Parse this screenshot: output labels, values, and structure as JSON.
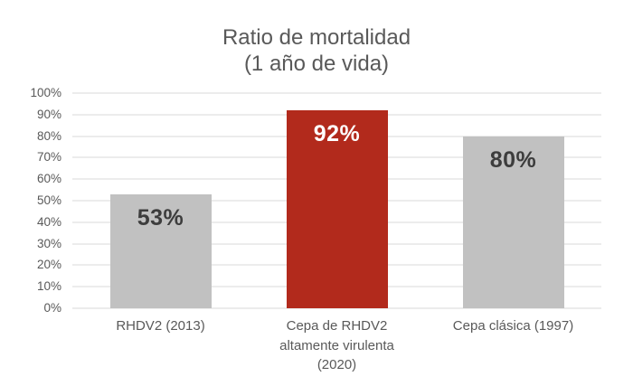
{
  "chart_data": {
    "type": "bar",
    "title": "Ratio de mortalidad",
    "subtitle": "(1 año de vida)",
    "categories": [
      "RHDV2 (2013)",
      "Cepa de RHDV2\naltamente virulenta\n(2020)",
      "Cepa clásica (1997)"
    ],
    "values": [
      53,
      92,
      80
    ],
    "value_labels": [
      "53%",
      "92%",
      "80%"
    ],
    "bar_colors": [
      "#c1c1c1",
      "#b22a1c",
      "#c1c1c1"
    ],
    "value_label_colors": [
      "#3d3d3d",
      "#ffffff",
      "#3d3d3d"
    ],
    "ylim": [
      0,
      100
    ],
    "yticks": [
      0,
      10,
      20,
      30,
      40,
      50,
      60,
      70,
      80,
      90,
      100
    ],
    "ytick_labels": [
      "0%",
      "10%",
      "20%",
      "30%",
      "40%",
      "50%",
      "60%",
      "70%",
      "80%",
      "90%",
      "100%"
    ],
    "grid": true,
    "legend": false,
    "colors": {
      "grid": "#d9d9d9",
      "axis_text": "#595959",
      "title_text": "#595959",
      "background": "#ffffff"
    }
  }
}
